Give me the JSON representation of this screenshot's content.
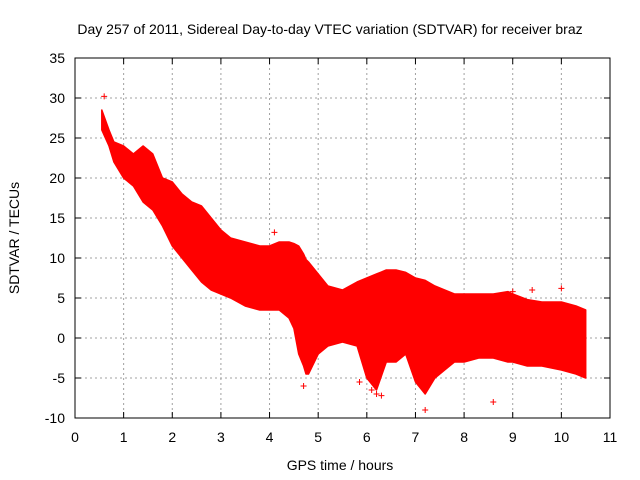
{
  "chart_data": {
    "type": "scatter",
    "title": "Day 257 of 2011, Sidereal Day-to-day VTEC variation (SDTVAR) for receiver braz",
    "xlabel": "GPS time / hours",
    "ylabel": "SDTVAR / TECUs",
    "xlim": [
      0,
      11
    ],
    "ylim": [
      -10,
      35
    ],
    "xticks": [
      "0",
      "1",
      "2",
      "3",
      "4",
      "5",
      "6",
      "7",
      "8",
      "9",
      "10",
      "11"
    ],
    "yticks": [
      "-10",
      "-5",
      "0",
      "5",
      "10",
      "15",
      "20",
      "25",
      "30",
      "35"
    ],
    "grid": true,
    "marker": "+",
    "series": [
      {
        "name": "SDTVAR",
        "color": "#ff0000",
        "band": {
          "x": [
            0.55,
            0.7,
            0.8,
            1.0,
            1.2,
            1.4,
            1.6,
            1.8,
            2.0,
            2.2,
            2.4,
            2.6,
            2.8,
            3.0,
            3.2,
            3.5,
            3.8,
            4.0,
            4.2,
            4.4,
            4.5,
            4.6,
            4.7,
            4.75,
            4.8,
            5.0,
            5.2,
            5.5,
            5.8,
            6.0,
            6.2,
            6.4,
            6.6,
            6.8,
            7.0,
            7.2,
            7.4,
            7.6,
            7.8,
            8.0,
            8.3,
            8.6,
            8.9,
            9.0,
            9.3,
            9.6,
            10.0,
            10.3,
            10.5
          ],
          "upper": [
            28.5,
            26,
            24.5,
            24,
            23,
            24,
            23,
            20,
            19.5,
            18,
            17,
            16.5,
            15,
            13.5,
            12.5,
            12,
            11.5,
            11.5,
            12,
            12,
            11.8,
            11.5,
            10.5,
            9.8,
            9.5,
            8,
            6.5,
            6,
            7,
            7.5,
            8,
            8.5,
            8.5,
            8.2,
            7.5,
            7.2,
            6.5,
            6,
            5.5,
            5.5,
            5.5,
            5.5,
            5.8,
            5.5,
            4.8,
            4.5,
            4.5,
            4,
            3.5
          ],
          "lower": [
            26,
            24,
            22,
            20,
            19,
            17,
            16,
            14,
            11.5,
            10,
            8.5,
            7,
            6,
            5.5,
            5,
            4,
            3.5,
            3.5,
            3.5,
            2.5,
            1.2,
            -2,
            -3.5,
            -4.5,
            -4.5,
            -2,
            -1,
            -0.5,
            -1,
            -5,
            -6.5,
            -3,
            -3,
            -2,
            -5.5,
            -7,
            -5,
            -4,
            -3,
            -3,
            -2.5,
            -2.5,
            -3,
            -3,
            -3.5,
            -3.5,
            -4,
            -4.5,
            -5
          ]
        },
        "outliers": [
          {
            "x": 0.6,
            "y": 30.2
          },
          {
            "x": 4.1,
            "y": 13.2
          },
          {
            "x": 8.6,
            "y": -8
          },
          {
            "x": 9.0,
            "y": 5.8
          },
          {
            "x": 9.4,
            "y": 6
          },
          {
            "x": 10.0,
            "y": 6.2
          },
          {
            "x": 6.1,
            "y": -6.5
          },
          {
            "x": 6.2,
            "y": -7
          },
          {
            "x": 6.3,
            "y": -7.2
          },
          {
            "x": 7.2,
            "y": -9
          },
          {
            "x": 4.7,
            "y": -6
          },
          {
            "x": 5.85,
            "y": -5.5
          }
        ]
      }
    ]
  }
}
